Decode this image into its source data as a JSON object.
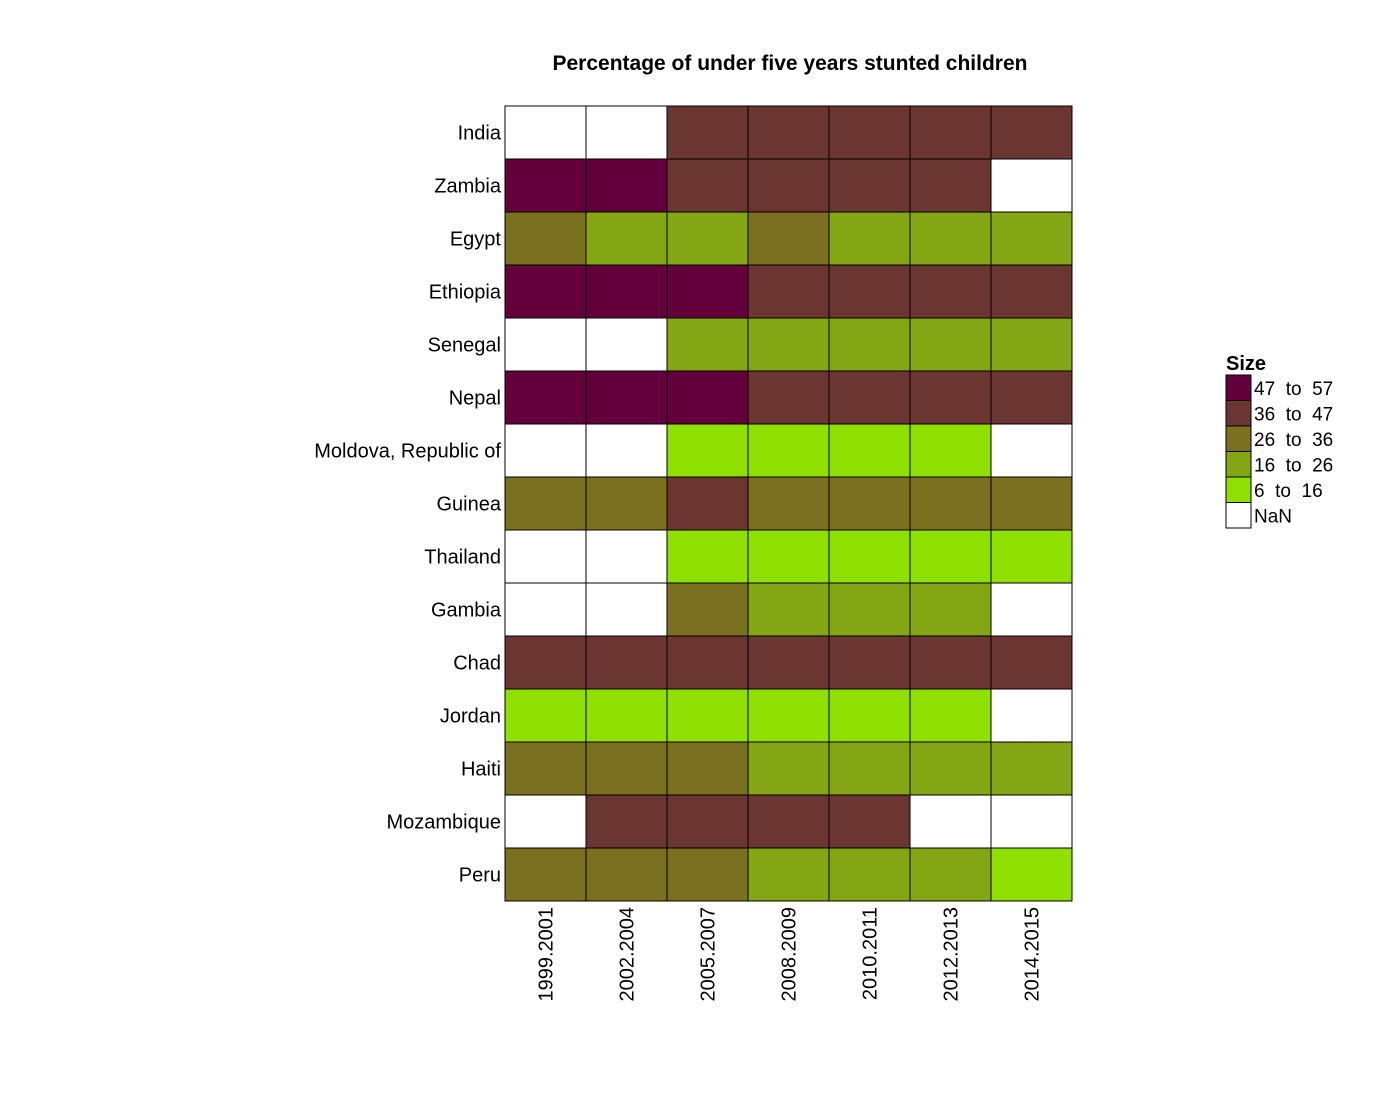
{
  "chart_data": {
    "type": "heatmap",
    "title": "Percentage of under five years stunted children",
    "rows": [
      "India",
      "Zambia",
      "Egypt",
      "Ethiopia",
      "Senegal",
      "Nepal",
      "Moldova, Republic of",
      "Guinea",
      "Thailand",
      "Gambia",
      "Chad",
      "Jordan",
      "Haiti",
      "Mozambique",
      "Peru"
    ],
    "columns": [
      "1999.2001",
      "2002.2004",
      "2005.2007",
      "2008.2009",
      "2010.2011",
      "2012.2013",
      "2014.2015"
    ],
    "cells": [
      [
        "NaN",
        "NaN",
        "36  to  47",
        "36  to  47",
        "36  to  47",
        "36  to  47",
        "36  to  47"
      ],
      [
        "47  to  57",
        "47  to  57",
        "36  to  47",
        "36  to  47",
        "36  to  47",
        "36  to  47",
        "NaN"
      ],
      [
        "26  to  36",
        "16  to  26",
        "16  to  26",
        "26  to  36",
        "16  to  26",
        "16  to  26",
        "16  to  26"
      ],
      [
        "47  to  57",
        "47  to  57",
        "47  to  57",
        "36  to  47",
        "36  to  47",
        "36  to  47",
        "36  to  47"
      ],
      [
        "NaN",
        "NaN",
        "16  to  26",
        "16  to  26",
        "16  to  26",
        "16  to  26",
        "16  to  26"
      ],
      [
        "47  to  57",
        "47  to  57",
        "47  to  57",
        "36  to  47",
        "36  to  47",
        "36  to  47",
        "36  to  47"
      ],
      [
        "NaN",
        "NaN",
        "6  to  16",
        "6  to  16",
        "6  to  16",
        "6  to  16",
        "NaN"
      ],
      [
        "26  to  36",
        "26  to  36",
        "36  to  47",
        "26  to  36",
        "26  to  36",
        "26  to  36",
        "26  to  36"
      ],
      [
        "NaN",
        "NaN",
        "6  to  16",
        "6  to  16",
        "6  to  16",
        "6  to  16",
        "6  to  16"
      ],
      [
        "NaN",
        "NaN",
        "26  to  36",
        "16  to  26",
        "16  to  26",
        "16  to  26",
        "NaN"
      ],
      [
        "36  to  47",
        "36  to  47",
        "36  to  47",
        "36  to  47",
        "36  to  47",
        "36  to  47",
        "36  to  47"
      ],
      [
        "6  to  16",
        "6  to  16",
        "6  to  16",
        "6  to  16",
        "6  to  16",
        "6  to  16",
        "NaN"
      ],
      [
        "26  to  36",
        "26  to  36",
        "26  to  36",
        "16  to  26",
        "16  to  26",
        "16  to  26",
        "16  to  26"
      ],
      [
        "NaN",
        "36  to  47",
        "36  to  47",
        "36  to  47",
        "36  to  47",
        "NaN",
        "NaN"
      ],
      [
        "26  to  36",
        "26  to  36",
        "26  to  36",
        "16  to  26",
        "16  to  26",
        "16  to  26",
        "6  to  16"
      ]
    ],
    "legend": {
      "title": "Size",
      "placement": "right",
      "categories": [
        {
          "label": "47  to  57",
          "color": "#63003c"
        },
        {
          "label": "36  to  47",
          "color": "#6b3532"
        },
        {
          "label": "26  to  36",
          "color": "#7a7020"
        },
        {
          "label": "16  to  26",
          "color": "#84a615"
        },
        {
          "label": "6  to  16",
          "color": "#8fe000"
        },
        {
          "label": "NaN",
          "color": "#ffffff"
        }
      ]
    },
    "grid": false
  }
}
